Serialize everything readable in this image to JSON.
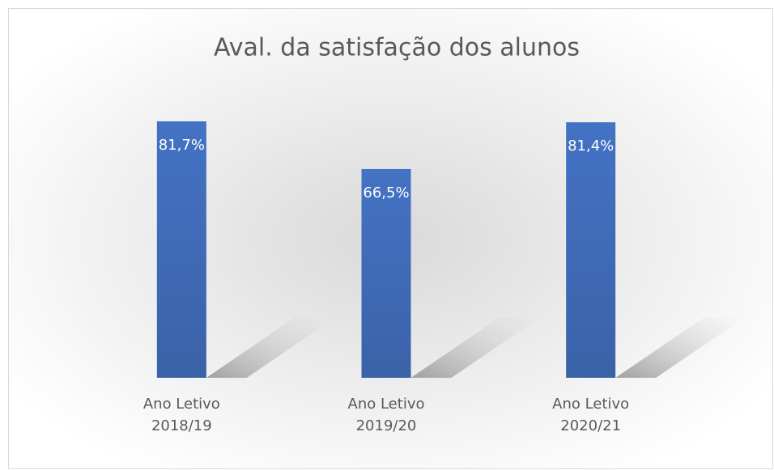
{
  "chart_data": {
    "type": "bar",
    "title": "Aval. da satisfação dos alunos",
    "categories": [
      "Ano Letivo 2018/19",
      "Ano Letivo 2019/20",
      "Ano Letivo 2020/21"
    ],
    "values": [
      81.7,
      66.5,
      81.4
    ],
    "value_labels": [
      "81,7%",
      "66,5%",
      "81,4%"
    ],
    "color": "#4472c4",
    "ylim": [
      0,
      100
    ]
  }
}
